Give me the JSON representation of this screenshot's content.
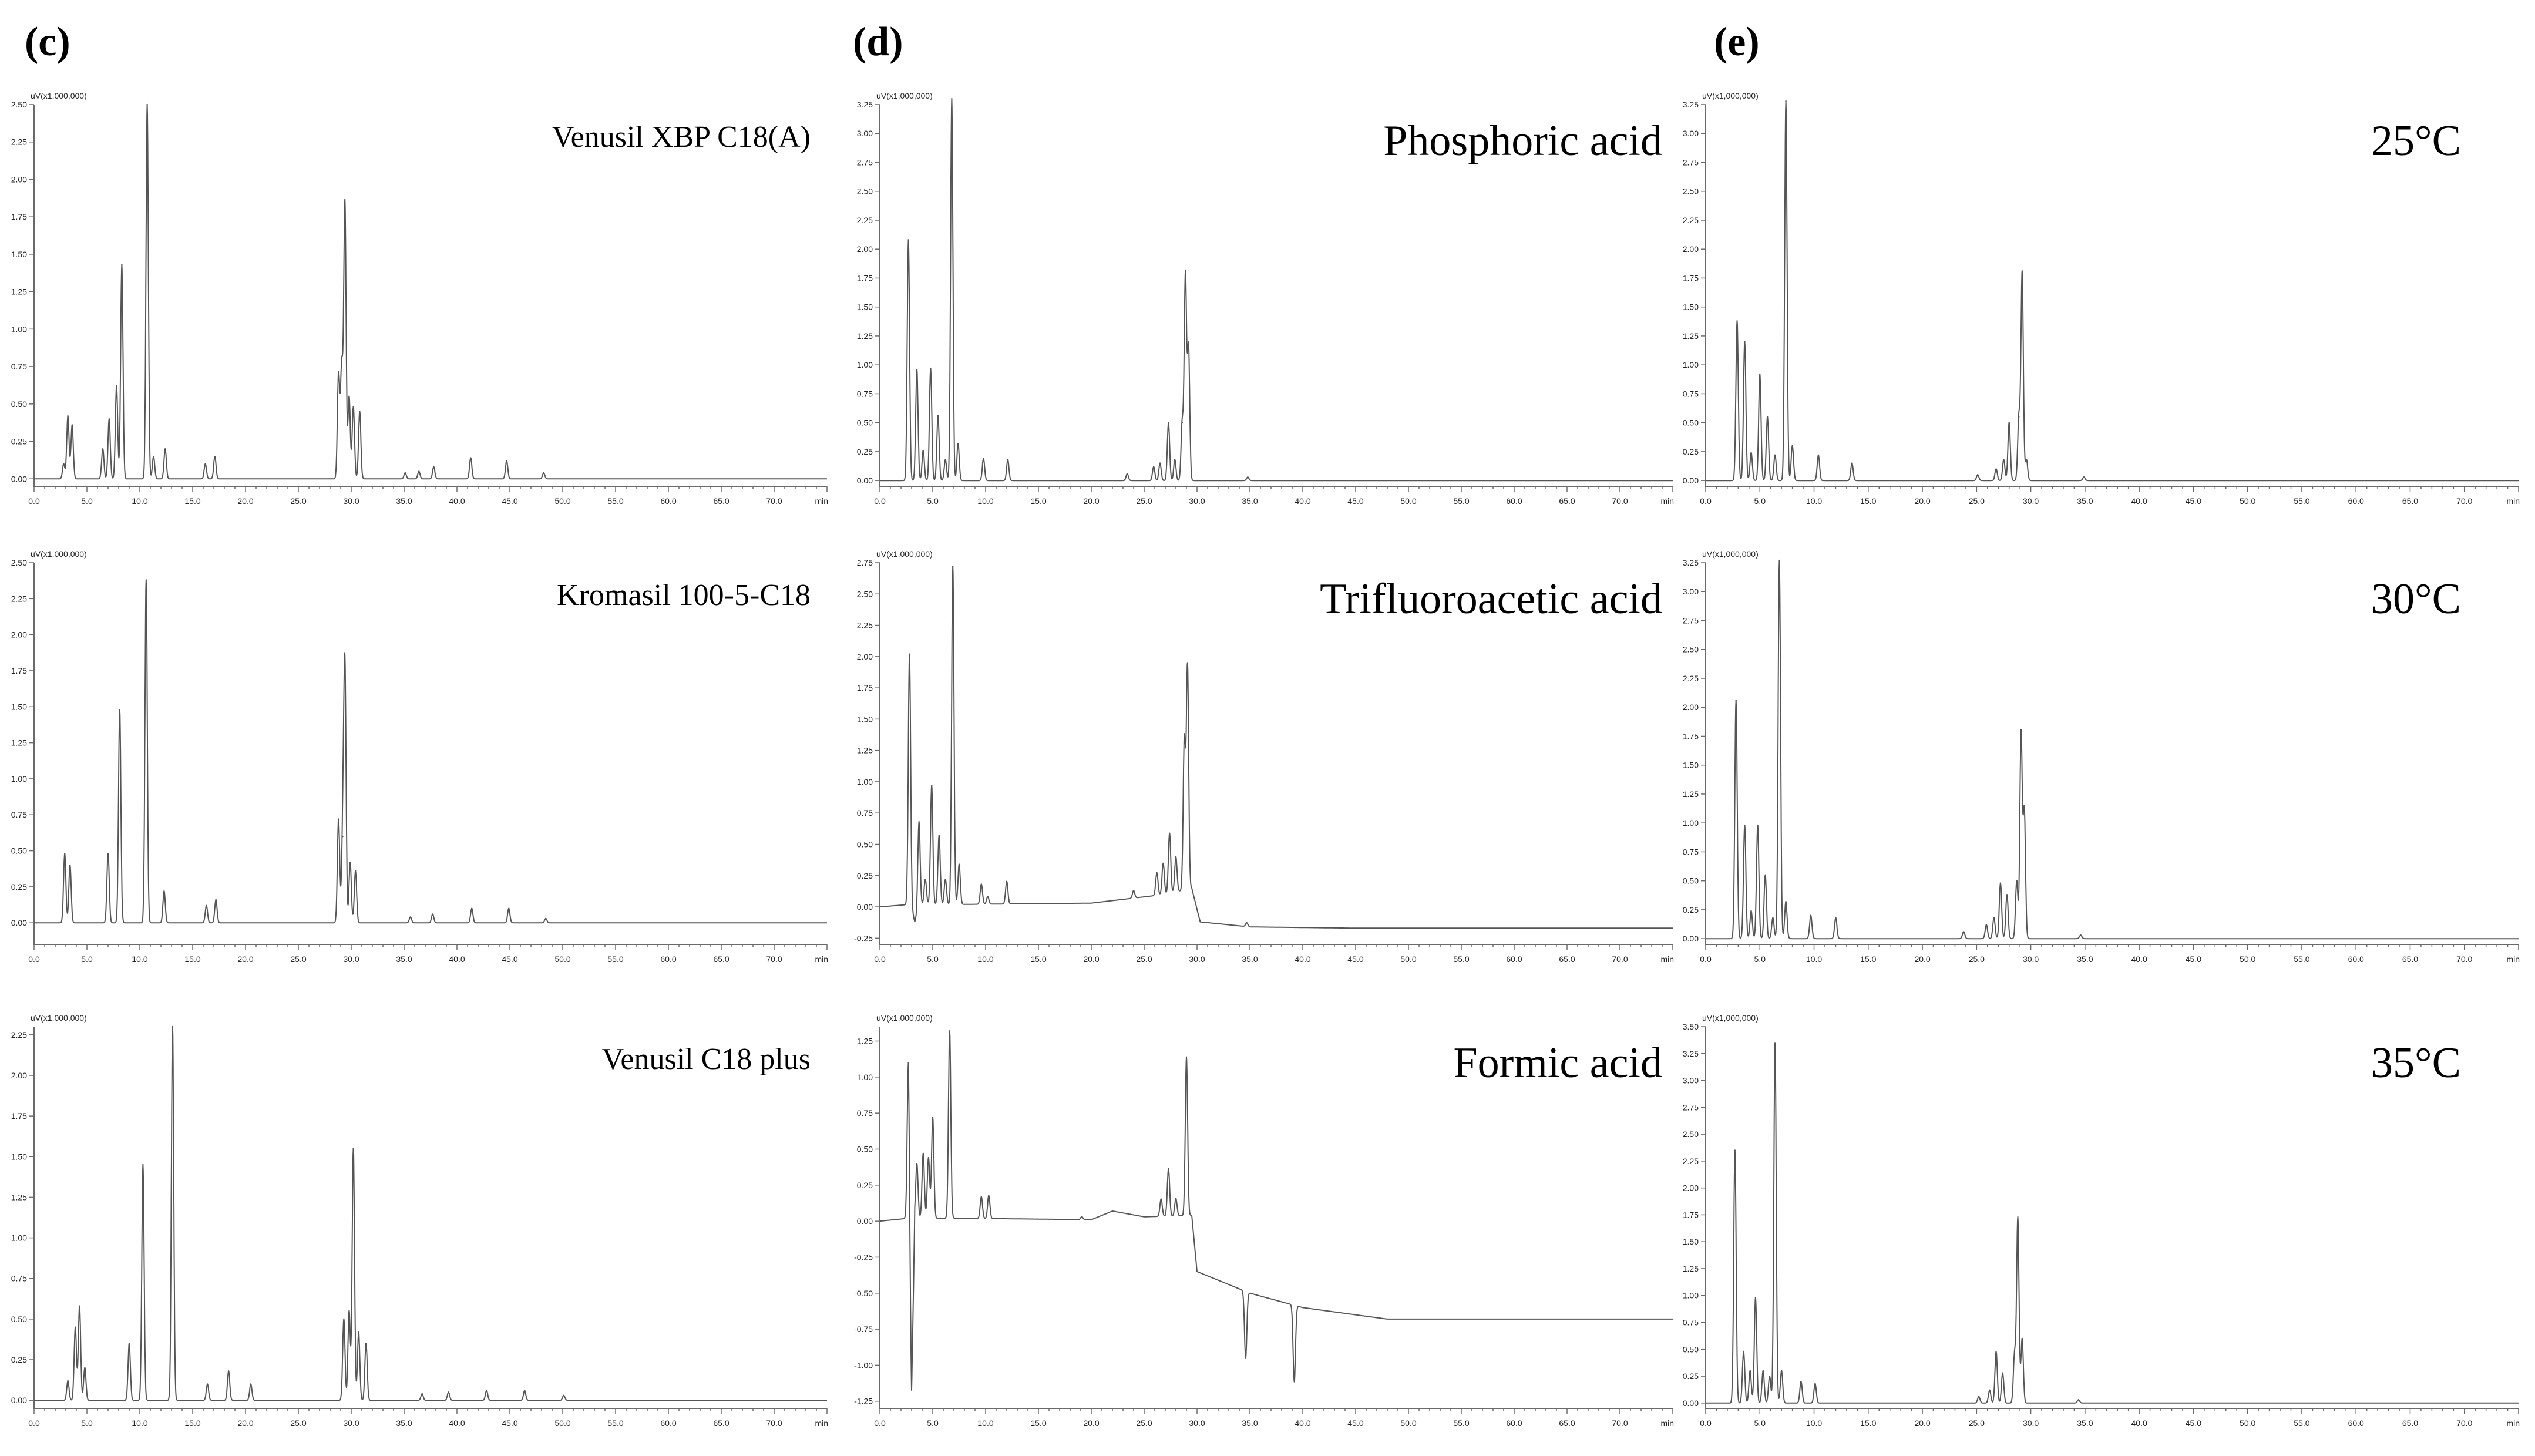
{
  "section_labels": [
    "(c)",
    "(d)",
    "(e)"
  ],
  "chart_data": [
    {
      "type": "line",
      "id": "c1",
      "title": "Venusil XBP C18(A)",
      "unit_label": "uV(x1,000,000)",
      "x_unit": "min",
      "xlim": [
        0,
        75
      ],
      "ylim": [
        -0.05,
        2.5
      ],
      "x_ticks": [
        0,
        5,
        10,
        15,
        20,
        25,
        30,
        35,
        40,
        45,
        50,
        55,
        60,
        65,
        70
      ],
      "y_ticks": [
        0,
        0.25,
        0.5,
        0.75,
        1.0,
        1.25,
        1.5,
        1.75,
        2.0,
        2.25,
        2.5
      ],
      "baseline": [
        [
          0,
          0
        ],
        [
          75,
          0
        ]
      ],
      "peaks": [
        [
          2.8,
          0.1
        ],
        [
          3.2,
          0.42
        ],
        [
          3.6,
          0.36
        ],
        [
          6.5,
          0.2
        ],
        [
          7.1,
          0.4
        ],
        [
          7.8,
          0.62
        ],
        [
          8.3,
          1.43
        ],
        [
          10.7,
          2.5
        ],
        [
          11.3,
          0.15
        ],
        [
          12.4,
          0.2
        ],
        [
          16.2,
          0.1
        ],
        [
          17.1,
          0.15
        ],
        [
          28.8,
          0.7
        ],
        [
          29.1,
          0.75
        ],
        [
          29.4,
          1.85
        ],
        [
          29.8,
          0.55
        ],
        [
          30.2,
          0.48
        ],
        [
          30.8,
          0.45
        ],
        [
          35.1,
          0.04
        ],
        [
          36.4,
          0.05
        ],
        [
          37.8,
          0.08
        ],
        [
          41.3,
          0.14
        ],
        [
          44.7,
          0.12
        ],
        [
          48.2,
          0.04
        ]
      ]
    },
    {
      "type": "line",
      "id": "c2",
      "title": "Kromasil 100-5-C18",
      "unit_label": "uV(x1,000,000)",
      "x_unit": "min",
      "xlim": [
        0,
        75
      ],
      "ylim": [
        -0.15,
        2.5
      ],
      "x_ticks": [
        0,
        5,
        10,
        15,
        20,
        25,
        30,
        35,
        40,
        45,
        50,
        55,
        60,
        65,
        70
      ],
      "y_ticks": [
        0,
        0.25,
        0.5,
        0.75,
        1.0,
        1.25,
        1.5,
        1.75,
        2.0,
        2.25,
        2.5
      ],
      "baseline": [
        [
          0,
          0
        ],
        [
          75,
          0
        ]
      ],
      "peaks": [
        [
          2.9,
          0.48
        ],
        [
          3.4,
          0.4
        ],
        [
          7.0,
          0.48
        ],
        [
          8.1,
          1.48
        ],
        [
          10.6,
          2.38
        ],
        [
          12.3,
          0.22
        ],
        [
          16.3,
          0.12
        ],
        [
          17.2,
          0.16
        ],
        [
          28.8,
          0.72
        ],
        [
          29.2,
          0.6
        ],
        [
          29.4,
          1.75
        ],
        [
          29.9,
          0.42
        ],
        [
          30.4,
          0.36
        ],
        [
          35.6,
          0.04
        ],
        [
          37.7,
          0.06
        ],
        [
          41.4,
          0.1
        ],
        [
          44.9,
          0.1
        ],
        [
          48.4,
          0.03
        ]
      ]
    },
    {
      "type": "line",
      "id": "c3",
      "title": "Venusil C18 plus",
      "unit_label": "uV(x1,000,000)",
      "x_unit": "min",
      "xlim": [
        0,
        75
      ],
      "ylim": [
        -0.05,
        2.3
      ],
      "x_ticks": [
        0,
        5,
        10,
        15,
        20,
        25,
        30,
        35,
        40,
        45,
        50,
        55,
        60,
        65,
        70
      ],
      "y_ticks": [
        0,
        0.25,
        0.5,
        0.75,
        1.0,
        1.25,
        1.5,
        1.75,
        2.0,
        2.25
      ],
      "baseline": [
        [
          0,
          0
        ],
        [
          75,
          0
        ]
      ],
      "peaks": [
        [
          3.2,
          0.12
        ],
        [
          3.9,
          0.45
        ],
        [
          4.3,
          0.58
        ],
        [
          4.8,
          0.2
        ],
        [
          9.0,
          0.35
        ],
        [
          10.3,
          1.45
        ],
        [
          13.1,
          2.3
        ],
        [
          16.4,
          0.1
        ],
        [
          18.4,
          0.18
        ],
        [
          20.5,
          0.1
        ],
        [
          29.3,
          0.5
        ],
        [
          29.8,
          0.55
        ],
        [
          30.2,
          1.55
        ],
        [
          30.7,
          0.42
        ],
        [
          31.4,
          0.35
        ],
        [
          36.7,
          0.04
        ],
        [
          39.2,
          0.05
        ],
        [
          42.8,
          0.06
        ],
        [
          46.4,
          0.06
        ],
        [
          50.1,
          0.03
        ]
      ]
    },
    {
      "type": "line",
      "id": "d1",
      "title": "Phosphoric acid",
      "unit_label": "uV(x1,000,000)",
      "x_unit": "min",
      "xlim": [
        0,
        75
      ],
      "ylim": [
        -0.05,
        3.25
      ],
      "x_ticks": [
        0,
        5,
        10,
        15,
        20,
        25,
        30,
        35,
        40,
        45,
        50,
        55,
        60,
        65,
        70
      ],
      "y_ticks": [
        0,
        0.25,
        0.5,
        0.75,
        1.0,
        1.25,
        1.5,
        1.75,
        2.0,
        2.25,
        2.5,
        2.75,
        3.0,
        3.25
      ],
      "baseline": [
        [
          0,
          0
        ],
        [
          75,
          0
        ]
      ],
      "peaks": [
        [
          2.7,
          2.08
        ],
        [
          3.5,
          0.96
        ],
        [
          4.1,
          0.26
        ],
        [
          4.8,
          0.97
        ],
        [
          5.5,
          0.56
        ],
        [
          6.2,
          0.18
        ],
        [
          6.8,
          3.3
        ],
        [
          7.4,
          0.32
        ],
        [
          9.8,
          0.19
        ],
        [
          12.1,
          0.18
        ],
        [
          23.4,
          0.06
        ],
        [
          25.9,
          0.12
        ],
        [
          26.5,
          0.15
        ],
        [
          27.3,
          0.5
        ],
        [
          27.9,
          0.18
        ],
        [
          28.6,
          0.5
        ],
        [
          28.9,
          1.78
        ],
        [
          29.2,
          1.15
        ],
        [
          34.8,
          0.03
        ]
      ]
    },
    {
      "type": "line",
      "id": "d2",
      "title": "Trifluoroacetic acid",
      "unit_label": "uV(x1,000,000)",
      "x_unit": "min",
      "xlim": [
        0,
        75
      ],
      "ylim": [
        -0.3,
        2.75
      ],
      "x_ticks": [
        0,
        5,
        10,
        15,
        20,
        25,
        30,
        35,
        40,
        45,
        50,
        55,
        60,
        65,
        70
      ],
      "y_ticks": [
        -0.25,
        0,
        0.25,
        0.5,
        0.75,
        1.0,
        1.25,
        1.5,
        1.75,
        2.0,
        2.25,
        2.5,
        2.75
      ],
      "baseline": [
        [
          0,
          0
        ],
        [
          2.9,
          0.02
        ],
        [
          3.3,
          -0.12
        ],
        [
          4.0,
          0.02
        ],
        [
          8,
          0.02
        ],
        [
          20,
          0.03
        ],
        [
          27,
          0.1
        ],
        [
          29.5,
          0.15
        ],
        [
          30.3,
          -0.12
        ],
        [
          35,
          -0.16
        ],
        [
          45,
          -0.17
        ],
        [
          75,
          -0.17
        ]
      ],
      "peaks": [
        [
          2.8,
          2.0
        ],
        [
          3.7,
          0.72
        ],
        [
          4.3,
          0.2
        ],
        [
          4.9,
          0.95
        ],
        [
          5.6,
          0.55
        ],
        [
          6.2,
          0.2
        ],
        [
          6.9,
          2.7
        ],
        [
          7.5,
          0.32
        ],
        [
          9.6,
          0.16
        ],
        [
          10.2,
          0.06
        ],
        [
          12.0,
          0.18
        ],
        [
          24.0,
          0.06
        ],
        [
          26.2,
          0.18
        ],
        [
          26.8,
          0.25
        ],
        [
          27.4,
          0.48
        ],
        [
          28.0,
          0.28
        ],
        [
          28.8,
          1.2
        ],
        [
          29.1,
          1.78
        ],
        [
          34.7,
          0.03
        ]
      ]
    },
    {
      "type": "line",
      "id": "d3",
      "title": "Formic acid",
      "unit_label": "uV(x1,000,000)",
      "x_unit": "min",
      "xlim": [
        0,
        75
      ],
      "ylim": [
        -1.3,
        1.35
      ],
      "x_ticks": [
        0,
        5,
        10,
        15,
        20,
        25,
        30,
        35,
        40,
        45,
        50,
        55,
        60,
        65,
        70
      ],
      "y_ticks": [
        -1.25,
        -1.0,
        -0.75,
        -0.5,
        -0.25,
        0,
        0.25,
        0.5,
        0.75,
        1.0,
        1.25
      ],
      "baseline": [
        [
          0,
          0
        ],
        [
          2.7,
          0.02
        ],
        [
          3.0,
          -1.2
        ],
        [
          3.3,
          0.02
        ],
        [
          8,
          0.02
        ],
        [
          20,
          0.01
        ],
        [
          22,
          0.07
        ],
        [
          25,
          0.03
        ],
        [
          29.5,
          0.04
        ],
        [
          30,
          -0.35
        ],
        [
          35,
          -0.5
        ],
        [
          40,
          -0.6
        ],
        [
          48,
          -0.68
        ],
        [
          75,
          -0.68
        ]
      ],
      "peaks": [
        [
          2.7,
          1.08
        ],
        [
          3.5,
          0.38
        ],
        [
          4.1,
          0.45
        ],
        [
          4.6,
          0.42
        ],
        [
          5.0,
          0.7
        ],
        [
          6.6,
          1.3
        ],
        [
          9.6,
          0.15
        ],
        [
          10.3,
          0.16
        ],
        [
          19.1,
          0.02
        ],
        [
          26.6,
          0.12
        ],
        [
          27.3,
          0.33
        ],
        [
          28.0,
          0.12
        ],
        [
          29.0,
          1.1
        ],
        [
          34.6,
          -0.46
        ],
        [
          39.2,
          -0.53
        ]
      ]
    },
    {
      "type": "line",
      "id": "e1",
      "title": "25°C",
      "unit_label": "uV(x1,000,000)",
      "x_unit": "min",
      "xlim": [
        0,
        75
      ],
      "ylim": [
        -0.05,
        3.25
      ],
      "x_ticks": [
        0,
        5,
        10,
        15,
        20,
        25,
        30,
        35,
        40,
        45,
        50,
        55,
        60,
        65,
        70
      ],
      "y_ticks": [
        0,
        0.25,
        0.5,
        0.75,
        1.0,
        1.25,
        1.5,
        1.75,
        2.0,
        2.25,
        2.5,
        2.75,
        3.0,
        3.25
      ],
      "baseline": [
        [
          0,
          0
        ],
        [
          75,
          0
        ]
      ],
      "peaks": [
        [
          2.9,
          1.38
        ],
        [
          3.6,
          1.2
        ],
        [
          4.2,
          0.24
        ],
        [
          5.0,
          0.92
        ],
        [
          5.7,
          0.55
        ],
        [
          6.4,
          0.22
        ],
        [
          7.4,
          3.28
        ],
        [
          8.0,
          0.3
        ],
        [
          10.4,
          0.22
        ],
        [
          13.5,
          0.15
        ],
        [
          25.1,
          0.05
        ],
        [
          26.8,
          0.1
        ],
        [
          27.5,
          0.18
        ],
        [
          28.0,
          0.5
        ],
        [
          28.9,
          0.55
        ],
        [
          29.2,
          1.8
        ],
        [
          29.6,
          0.18
        ],
        [
          34.9,
          0.03
        ]
      ]
    },
    {
      "type": "line",
      "id": "e2",
      "title": "30°C",
      "unit_label": "uV(x1,000,000)",
      "x_unit": "min",
      "xlim": [
        0,
        75
      ],
      "ylim": [
        -0.05,
        3.25
      ],
      "x_ticks": [
        0,
        5,
        10,
        15,
        20,
        25,
        30,
        35,
        40,
        45,
        50,
        55,
        60,
        65,
        70
      ],
      "y_ticks": [
        0,
        0.25,
        0.5,
        0.75,
        1.0,
        1.25,
        1.5,
        1.75,
        2.0,
        2.25,
        2.5,
        2.75,
        3.0,
        3.25
      ],
      "baseline": [
        [
          0,
          0
        ],
        [
          75,
          0
        ]
      ],
      "peaks": [
        [
          2.8,
          2.06
        ],
        [
          3.6,
          0.98
        ],
        [
          4.2,
          0.24
        ],
        [
          4.8,
          0.98
        ],
        [
          5.5,
          0.55
        ],
        [
          6.2,
          0.18
        ],
        [
          6.8,
          3.27
        ],
        [
          7.4,
          0.32
        ],
        [
          9.7,
          0.2
        ],
        [
          12.0,
          0.18
        ],
        [
          23.8,
          0.06
        ],
        [
          25.9,
          0.12
        ],
        [
          26.6,
          0.18
        ],
        [
          27.2,
          0.48
        ],
        [
          27.8,
          0.38
        ],
        [
          28.7,
          0.5
        ],
        [
          29.1,
          1.78
        ],
        [
          29.4,
          1.1
        ],
        [
          34.6,
          0.03
        ]
      ]
    },
    {
      "type": "line",
      "id": "e3",
      "title": "35°C",
      "unit_label": "uV(x1,000,000)",
      "x_unit": "min",
      "xlim": [
        0,
        75
      ],
      "ylim": [
        -0.05,
        3.5
      ],
      "x_ticks": [
        0,
        5,
        10,
        15,
        20,
        25,
        30,
        35,
        40,
        45,
        50,
        55,
        60,
        65,
        70
      ],
      "y_ticks": [
        0,
        0.25,
        0.5,
        0.75,
        1.0,
        1.25,
        1.5,
        1.75,
        2.0,
        2.25,
        2.5,
        2.75,
        3.0,
        3.25,
        3.5
      ],
      "baseline": [
        [
          0,
          0
        ],
        [
          75,
          0
        ]
      ],
      "peaks": [
        [
          2.7,
          2.35
        ],
        [
          3.5,
          0.48
        ],
        [
          4.1,
          0.3
        ],
        [
          4.6,
          0.98
        ],
        [
          5.3,
          0.3
        ],
        [
          5.9,
          0.25
        ],
        [
          6.4,
          3.35
        ],
        [
          7.0,
          0.3
        ],
        [
          8.8,
          0.2
        ],
        [
          10.1,
          0.18
        ],
        [
          25.2,
          0.06
        ],
        [
          26.2,
          0.12
        ],
        [
          26.8,
          0.48
        ],
        [
          27.4,
          0.28
        ],
        [
          28.5,
          0.45
        ],
        [
          28.8,
          1.72
        ],
        [
          29.2,
          0.6
        ],
        [
          34.4,
          0.03
        ]
      ]
    }
  ]
}
